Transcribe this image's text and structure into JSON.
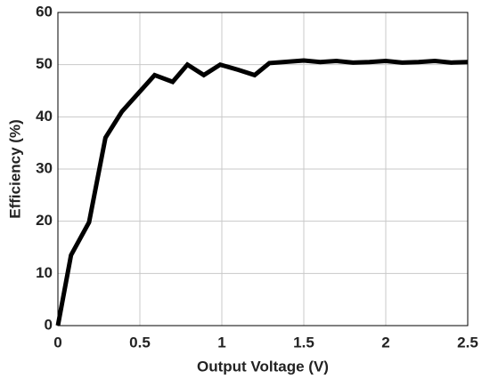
{
  "chart_data": {
    "type": "line",
    "x_label": "Output Voltage (V)",
    "y_label": "Efficiency (%)",
    "x": [
      0,
      0.08,
      0.19,
      0.29,
      0.39,
      0.49,
      0.59,
      0.7,
      0.79,
      0.89,
      0.99,
      1.1,
      1.2,
      1.29,
      1.5,
      1.6,
      1.7,
      1.8,
      1.9,
      2.0,
      2.1,
      2.2,
      2.3,
      2.4,
      2.5
    ],
    "series": [
      {
        "color": "#000000",
        "values": [
          0,
          13.5,
          19.8,
          36,
          41,
          44.5,
          48,
          46.7,
          50,
          48,
          50,
          49,
          48,
          50.3,
          50.8,
          50.5,
          50.7,
          50.4,
          50.5,
          50.7,
          50.4,
          50.5,
          50.7,
          50.4,
          50.5
        ]
      }
    ],
    "xlim": [
      0,
      2.5
    ],
    "xticks": [
      0,
      0.5,
      1,
      1.5,
      2,
      2.5
    ],
    "ylim": [
      0,
      60
    ],
    "yticks": [
      0,
      10,
      20,
      30,
      40,
      50,
      60
    ],
    "grid": true
  }
}
